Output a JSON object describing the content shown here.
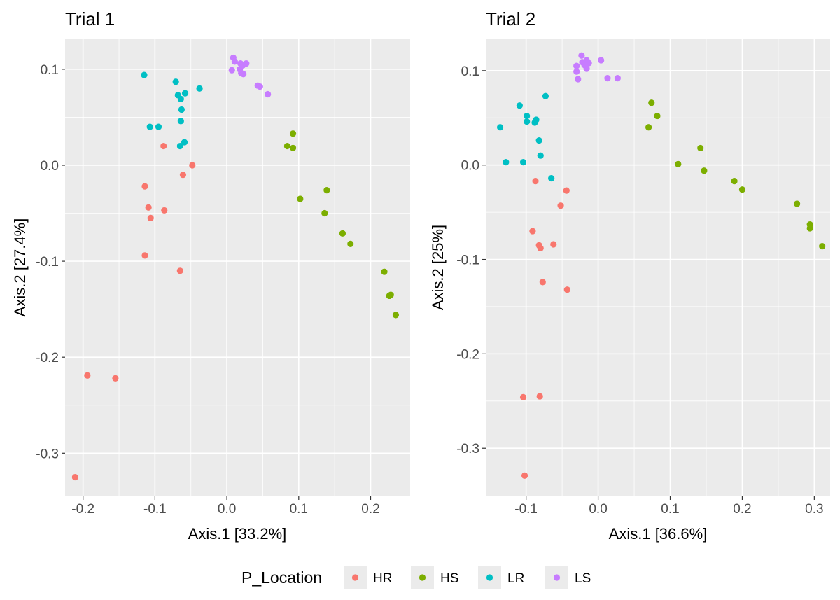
{
  "chart_data": [
    {
      "type": "scatter",
      "title": "Trial 1",
      "xlabel": "Axis.1   [33.2%]",
      "ylabel": "Axis.2   [27.4%]",
      "xlim": [
        -0.225,
        0.255
      ],
      "ylim": [
        -0.345,
        0.132
      ],
      "xticks": [
        -0.2,
        -0.1,
        0.0,
        0.1,
        0.2
      ],
      "xtick_labels": [
        "-0.2",
        "-0.1",
        "0.0",
        "0.1",
        "0.2"
      ],
      "yticks": [
        -0.3,
        -0.2,
        -0.1,
        0.0,
        0.1
      ],
      "ytick_labels": [
        "-0.3",
        "-0.2",
        "-0.1",
        "0.0",
        "0.1"
      ],
      "grid": true,
      "series": [
        {
          "name": "HR",
          "points": [
            [
              -0.088,
              0.02
            ],
            [
              -0.048,
              0.0
            ],
            [
              -0.061,
              -0.01
            ],
            [
              -0.114,
              -0.022
            ],
            [
              -0.109,
              -0.044
            ],
            [
              -0.087,
              -0.047
            ],
            [
              -0.106,
              -0.055
            ],
            [
              -0.114,
              -0.094
            ],
            [
              -0.065,
              -0.11
            ],
            [
              -0.194,
              -0.219
            ],
            [
              -0.155,
              -0.222
            ],
            [
              -0.211,
              -0.325
            ]
          ]
        },
        {
          "name": "HS",
          "points": [
            [
              0.092,
              0.033
            ],
            [
              0.084,
              0.02
            ],
            [
              0.092,
              0.018
            ],
            [
              0.139,
              -0.026
            ],
            [
              0.102,
              -0.035
            ],
            [
              0.136,
              -0.05
            ],
            [
              0.161,
              -0.071
            ],
            [
              0.172,
              -0.082
            ],
            [
              0.219,
              -0.111
            ],
            [
              0.228,
              -0.135
            ],
            [
              0.226,
              -0.136
            ],
            [
              0.235,
              -0.156
            ]
          ]
        },
        {
          "name": "LR",
          "points": [
            [
              -0.115,
              0.094
            ],
            [
              -0.071,
              0.087
            ],
            [
              -0.038,
              0.08
            ],
            [
              -0.058,
              0.075
            ],
            [
              -0.068,
              0.073
            ],
            [
              -0.064,
              0.069
            ],
            [
              -0.063,
              0.058
            ],
            [
              -0.064,
              0.046
            ],
            [
              -0.107,
              0.04
            ],
            [
              -0.095,
              0.04
            ],
            [
              -0.059,
              0.024
            ],
            [
              -0.065,
              0.02
            ]
          ]
        },
        {
          "name": "LS",
          "points": [
            [
              0.009,
              0.112
            ],
            [
              0.011,
              0.108
            ],
            [
              0.019,
              0.106
            ],
            [
              0.027,
              0.106
            ],
            [
              0.022,
              0.104
            ],
            [
              0.018,
              0.1
            ],
            [
              0.007,
              0.099
            ],
            [
              0.02,
              0.096
            ],
            [
              0.023,
              0.095
            ],
            [
              0.043,
              0.083
            ],
            [
              0.046,
              0.082
            ],
            [
              0.057,
              0.074
            ]
          ]
        }
      ]
    },
    {
      "type": "scatter",
      "title": "Trial 2",
      "xlabel": "Axis.1   [36.6%]",
      "ylabel": "Axis.2   [25%]",
      "xlim": [
        -0.156,
        0.322
      ],
      "ylim": [
        -0.351,
        0.134
      ],
      "xticks": [
        -0.1,
        0.0,
        0.1,
        0.2,
        0.3
      ],
      "xtick_labels": [
        "-0.1",
        "0.0",
        "0.1",
        "0.2",
        "0.3"
      ],
      "yticks": [
        -0.3,
        -0.2,
        -0.1,
        0.0,
        0.1
      ],
      "ytick_labels": [
        "-0.3",
        "-0.2",
        "-0.1",
        "0.0",
        "0.1"
      ],
      "grid": true,
      "series": [
        {
          "name": "HR",
          "points": [
            [
              -0.087,
              -0.017
            ],
            [
              -0.044,
              -0.027
            ],
            [
              -0.052,
              -0.043
            ],
            [
              -0.091,
              -0.07
            ],
            [
              -0.062,
              -0.084
            ],
            [
              -0.082,
              -0.085
            ],
            [
              -0.08,
              -0.088
            ],
            [
              -0.077,
              -0.124
            ],
            [
              -0.043,
              -0.132
            ],
            [
              -0.104,
              -0.246
            ],
            [
              -0.081,
              -0.245
            ],
            [
              -0.102,
              -0.329
            ]
          ]
        },
        {
          "name": "HS",
          "points": [
            [
              0.074,
              0.066
            ],
            [
              0.082,
              0.052
            ],
            [
              0.07,
              0.04
            ],
            [
              0.142,
              0.018
            ],
            [
              0.111,
              0.001
            ],
            [
              0.147,
              -0.006
            ],
            [
              0.189,
              -0.017
            ],
            [
              0.2,
              -0.026
            ],
            [
              0.276,
              -0.041
            ],
            [
              0.294,
              -0.063
            ],
            [
              0.294,
              -0.067
            ],
            [
              0.311,
              -0.086
            ]
          ]
        },
        {
          "name": "LR",
          "points": [
            [
              -0.073,
              0.073
            ],
            [
              -0.109,
              0.063
            ],
            [
              -0.099,
              0.052
            ],
            [
              -0.086,
              0.048
            ],
            [
              -0.088,
              0.045
            ],
            [
              -0.099,
              0.046
            ],
            [
              -0.136,
              0.04
            ],
            [
              -0.082,
              0.026
            ],
            [
              -0.08,
              0.01
            ],
            [
              -0.065,
              -0.014
            ],
            [
              -0.128,
              0.003
            ],
            [
              -0.104,
              0.003
            ]
          ]
        },
        {
          "name": "LS",
          "points": [
            [
              -0.023,
              0.116
            ],
            [
              -0.016,
              0.111
            ],
            [
              -0.022,
              0.109
            ],
            [
              -0.013,
              0.108
            ],
            [
              0.004,
              0.111
            ],
            [
              -0.03,
              0.105
            ],
            [
              -0.016,
              0.102
            ],
            [
              -0.03,
              0.099
            ],
            [
              0.013,
              0.092
            ],
            [
              0.027,
              0.092
            ],
            [
              -0.028,
              0.091
            ],
            [
              -0.019,
              0.106
            ]
          ]
        }
      ]
    }
  ],
  "legend": {
    "title": "P_Location",
    "items": [
      {
        "label": "HR",
        "color": "#f8766d"
      },
      {
        "label": "HS",
        "color": "#7cae00"
      },
      {
        "label": "LR",
        "color": "#00bfc4"
      },
      {
        "label": "LS",
        "color": "#c77cff"
      }
    ]
  },
  "colors": {
    "panel_background": "#ebebeb",
    "grid_major": "#ffffff",
    "HR": "#f8766d",
    "HS": "#7cae00",
    "LR": "#00bfc4",
    "LS": "#c77cff"
  }
}
